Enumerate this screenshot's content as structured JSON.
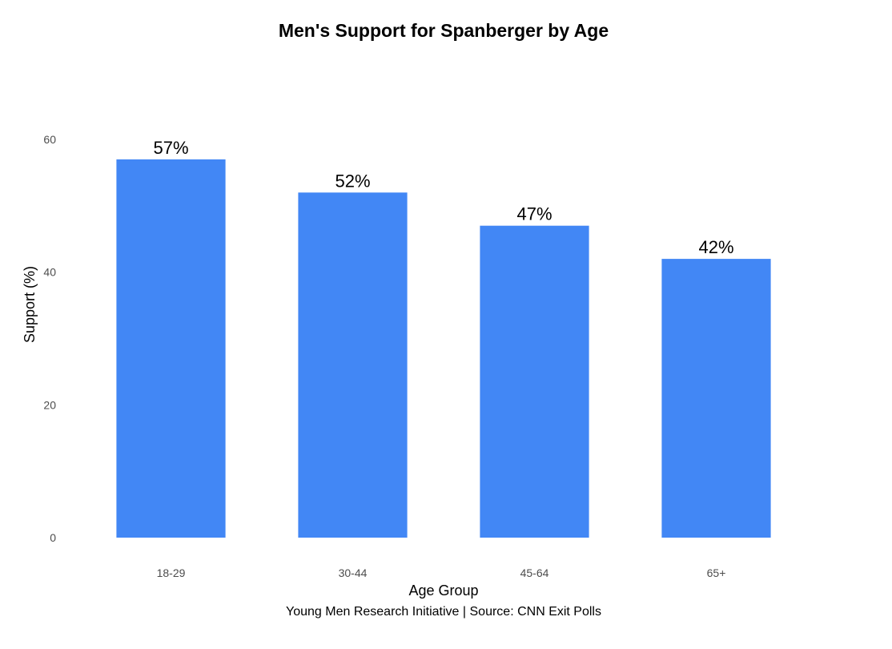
{
  "chart_data": {
    "type": "bar",
    "title": "Men's Support for Spanberger by Age",
    "xlabel": "Age Group",
    "ylabel": "Support (%)",
    "caption": "Young Men Research Initiative | Source: CNN Exit Polls",
    "categories": [
      "18-29",
      "30-44",
      "45-64",
      "65+"
    ],
    "values": [
      57,
      52,
      47,
      42
    ],
    "data_labels": [
      "57%",
      "52%",
      "47%",
      "42%"
    ],
    "ylim": [
      0,
      60
    ],
    "yticks": [
      0,
      20,
      40,
      60
    ],
    "ytick_labels": [
      "0",
      "20",
      "40",
      "60"
    ],
    "grid": false,
    "legend": "none",
    "bar_color": "#4287f5"
  }
}
